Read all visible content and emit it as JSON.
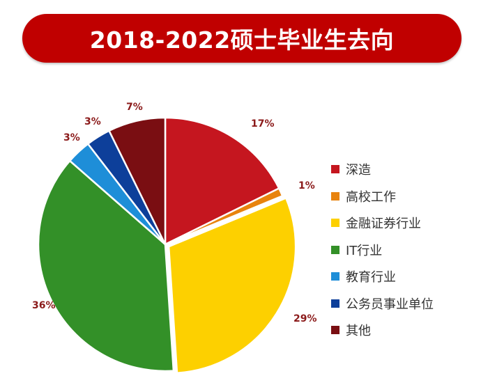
{
  "header": {
    "title": "2018-2022硕士毕业生去向"
  },
  "colors": {
    "banner": "#c00000",
    "label": "#8b1a1a"
  },
  "chart_data": {
    "type": "pie",
    "title": "2018-2022硕士毕业生去向",
    "unit": "%",
    "legend_position": "right",
    "categories": [
      "深造",
      "高校工作",
      "金融证券行业",
      "IT行业",
      "教育行业",
      "公务员事业单位",
      "其他"
    ],
    "values": [
      17,
      1,
      29,
      36,
      3,
      3,
      7
    ],
    "labels": [
      "17%",
      "1%",
      "29%",
      "36%",
      "3%",
      "3%",
      "7%"
    ],
    "colors": [
      "#c5161f",
      "#e8830e",
      "#fdd000",
      "#339028",
      "#1e8ed8",
      "#0d3f9a",
      "#7a0e12"
    ]
  }
}
